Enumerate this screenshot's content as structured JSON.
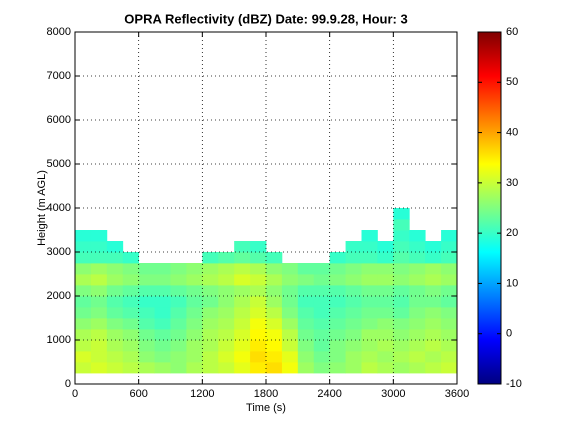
{
  "chart_data": {
    "type": "heatmap",
    "title": "OPRA Reflectivity (dBZ)  Date: 99.9.28, Hour: 3",
    "xlabel": "Time (s)",
    "ylabel": "Height (m AGL)",
    "xlim": [
      0,
      3600
    ],
    "xticks": [
      0,
      600,
      1200,
      1800,
      2400,
      3000,
      3600
    ],
    "ylim": [
      0,
      8000
    ],
    "yticks": [
      0,
      1000,
      2000,
      3000,
      4000,
      5000,
      6000,
      7000,
      8000
    ],
    "grid": true,
    "colormap": "jet",
    "clim": [
      -10,
      60
    ],
    "cticks": [
      -10,
      0,
      10,
      20,
      30,
      40,
      50,
      60
    ],
    "x_bins": [
      0,
      150,
      300,
      450,
      600,
      750,
      900,
      1050,
      1200,
      1350,
      1500,
      1650,
      1800,
      1950,
      2100,
      2250,
      2400,
      2550,
      2700,
      2850,
      3000,
      3150,
      3300,
      3450,
      3600
    ],
    "y_bins": [
      250,
      500,
      750,
      1000,
      1250,
      1500,
      1750,
      2000,
      2250,
      2500,
      2750,
      3000,
      3250,
      3500,
      3750,
      4000
    ],
    "values": [
      [
        30,
        31,
        30,
        29,
        28,
        27,
        26,
        28,
        29,
        30,
        32,
        35,
        36,
        33,
        27,
        25,
        26,
        27,
        29,
        28,
        27,
        28,
        29,
        30
      ],
      [
        31,
        30,
        29,
        28,
        26,
        25,
        26,
        27,
        29,
        31,
        33,
        36,
        35,
        32,
        26,
        24,
        25,
        27,
        28,
        27,
        28,
        29,
        28,
        29
      ],
      [
        29,
        30,
        28,
        27,
        25,
        24,
        25,
        27,
        28,
        30,
        32,
        35,
        34,
        30,
        25,
        23,
        25,
        26,
        27,
        28,
        27,
        28,
        29,
        28
      ],
      [
        28,
        29,
        27,
        26,
        24,
        23,
        24,
        26,
        28,
        29,
        31,
        34,
        33,
        29,
        24,
        23,
        24,
        25,
        27,
        27,
        26,
        27,
        28,
        27
      ],
      [
        26,
        27,
        25,
        24,
        22,
        21,
        23,
        25,
        27,
        28,
        30,
        33,
        31,
        27,
        23,
        22,
        23,
        24,
        25,
        26,
        25,
        26,
        27,
        26
      ],
      [
        24,
        25,
        23,
        22,
        21,
        20,
        22,
        24,
        26,
        27,
        29,
        31,
        29,
        25,
        22,
        21,
        22,
        23,
        24,
        24,
        23,
        25,
        26,
        25
      ],
      [
        23,
        24,
        22,
        21,
        20,
        20,
        21,
        23,
        24,
        26,
        28,
        30,
        27,
        24,
        21,
        21,
        21,
        22,
        23,
        23,
        22,
        24,
        24,
        23
      ],
      [
        25,
        26,
        24,
        23,
        22,
        22,
        23,
        24,
        25,
        26,
        27,
        28,
        26,
        24,
        22,
        22,
        22,
        23,
        24,
        24,
        23,
        24,
        25,
        24
      ],
      [
        28,
        29,
        27,
        26,
        25,
        25,
        26,
        27,
        28,
        29,
        31,
        30,
        28,
        26,
        25,
        24,
        25,
        26,
        27,
        27,
        26,
        27,
        28,
        27
      ],
      [
        26,
        27,
        26,
        25,
        24,
        24,
        25,
        26,
        27,
        28,
        29,
        28,
        26,
        25,
        23,
        23,
        24,
        25,
        26,
        26,
        25,
        26,
        27,
        26
      ],
      [
        21,
        21,
        21,
        20,
        null,
        null,
        null,
        null,
        21,
        22,
        23,
        22,
        21,
        null,
        null,
        null,
        20,
        21,
        21,
        20,
        22,
        21,
        20,
        21
      ],
      [
        20,
        20,
        19,
        null,
        null,
        null,
        null,
        null,
        null,
        null,
        21,
        20,
        null,
        null,
        null,
        null,
        null,
        20,
        20,
        19,
        21,
        20,
        19,
        20
      ],
      [
        19,
        19,
        null,
        null,
        null,
        null,
        null,
        null,
        null,
        null,
        null,
        null,
        null,
        null,
        null,
        null,
        null,
        null,
        19,
        null,
        20,
        19,
        null,
        19
      ],
      [
        null,
        null,
        null,
        null,
        null,
        null,
        null,
        null,
        null,
        null,
        null,
        null,
        null,
        null,
        null,
        null,
        null,
        null,
        null,
        null,
        21,
        null,
        null,
        null
      ],
      [
        null,
        null,
        null,
        null,
        null,
        null,
        null,
        null,
        null,
        null,
        null,
        null,
        null,
        null,
        null,
        null,
        null,
        null,
        null,
        null,
        19,
        null,
        null,
        null
      ]
    ]
  }
}
